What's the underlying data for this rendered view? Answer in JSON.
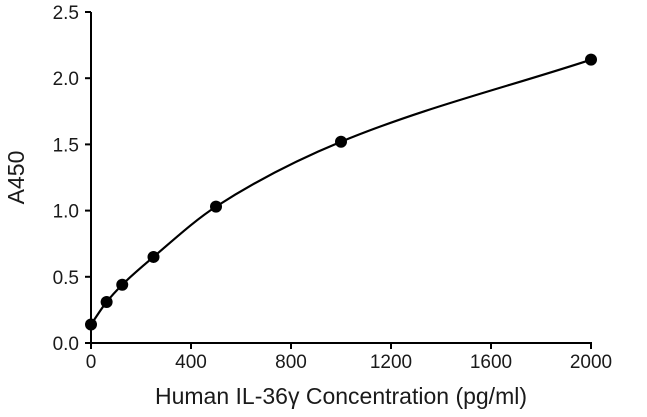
{
  "chart_data": {
    "type": "scatter",
    "title": "",
    "xlabel": "Human IL-36γ Concentration (pg/ml)",
    "ylabel": "A450",
    "xlim": [
      0,
      2000
    ],
    "ylim": [
      0,
      2.5
    ],
    "x_ticks": [
      "0",
      "400",
      "800",
      "1200",
      "1600",
      "2000"
    ],
    "y_ticks": [
      "0.0",
      "0.5",
      "1.0",
      "1.5",
      "2.0",
      "2.5"
    ],
    "grid": false,
    "legend": "none",
    "series": [
      {
        "x": [
          0,
          62.5,
          125,
          250,
          500,
          1000,
          2000
        ],
        "y": [
          0.14,
          0.31,
          0.44,
          0.65,
          1.03,
          1.52,
          2.14
        ]
      }
    ],
    "fit_curve": {
      "type": "smooth",
      "x": [
        0,
        62.5,
        125,
        250,
        500,
        1000,
        2000
      ],
      "y": [
        0.14,
        0.31,
        0.44,
        0.65,
        1.03,
        1.52,
        2.14
      ]
    },
    "colors": {
      "marker": "#000000",
      "line": "#000000",
      "axis": "#000000"
    }
  }
}
